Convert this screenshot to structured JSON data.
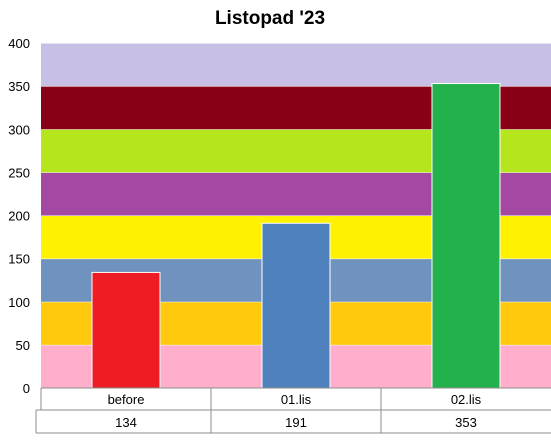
{
  "chart_data": {
    "type": "bar",
    "title": "Listopad '23",
    "xlabel": "",
    "ylabel": "",
    "ylim": [
      0,
      400
    ],
    "yticks": [
      "0",
      "50",
      "100",
      "150",
      "200",
      "250",
      "300",
      "350",
      "400"
    ],
    "categories": [
      "before",
      "01.lis",
      "02.lis"
    ],
    "values": [
      134,
      191,
      353
    ],
    "value_labels": [
      "134",
      "191",
      "353"
    ],
    "bar_colors": [
      "#ee1c25",
      "#4f81bd",
      "#22b14c"
    ],
    "bands": [
      {
        "from": 0,
        "to": 50,
        "color": "#ffaecb"
      },
      {
        "from": 50,
        "to": 100,
        "color": "#ffc90d"
      },
      {
        "from": 100,
        "to": 150,
        "color": "#7092be"
      },
      {
        "from": 150,
        "to": 200,
        "color": "#fff200"
      },
      {
        "from": 200,
        "to": 250,
        "color": "#a349a3"
      },
      {
        "from": 250,
        "to": 300,
        "color": "#b5e51d"
      },
      {
        "from": 300,
        "to": 350,
        "color": "#880016"
      },
      {
        "from": 350,
        "to": 400,
        "color": "#c8bfe7"
      }
    ],
    "grid": false,
    "data_table": true
  }
}
